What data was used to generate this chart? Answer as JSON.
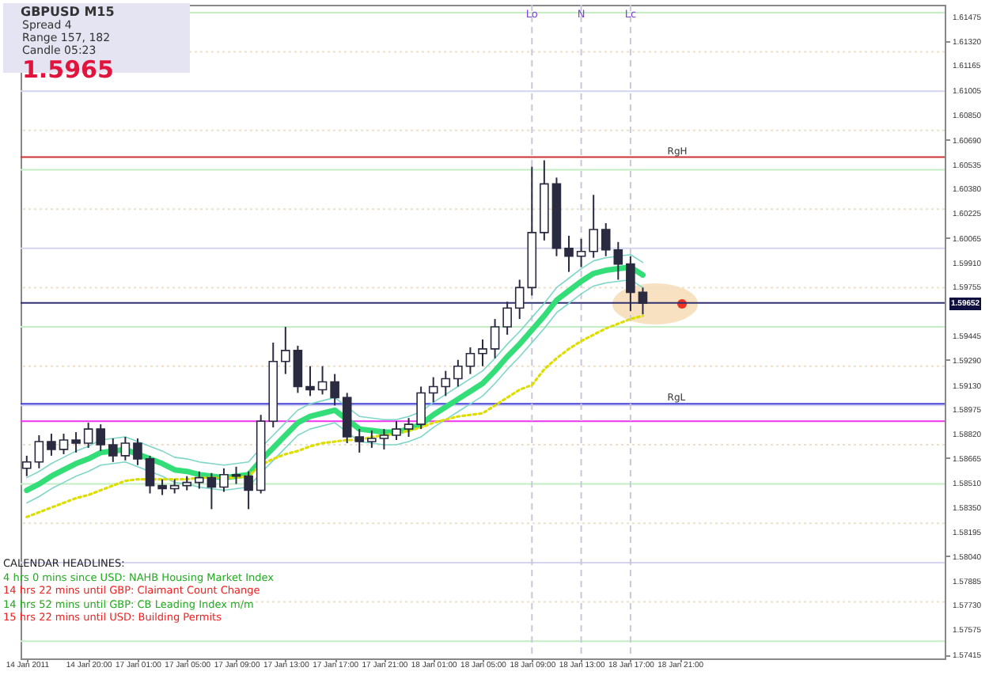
{
  "chart_data": {
    "type": "candlestick",
    "title": "GBPUSD M15",
    "categories": [
      "14 Jan 2011",
      null,
      null,
      null,
      null,
      "14 Jan 20:00",
      null,
      null,
      null,
      "17 Jan 01:00",
      null,
      null,
      null,
      "17 Jan 05:00",
      null,
      null,
      null,
      "17 Jan 09:00",
      null,
      null,
      null,
      "17 Jan 13:00",
      null,
      null,
      null,
      "17 Jan 17:00",
      null,
      null,
      null,
      "17 Jan 21:00",
      null,
      null,
      null,
      "18 Jan 01:00",
      null,
      null,
      null,
      "18 Jan 05:00",
      null,
      null,
      null,
      "18 Jan 09:00",
      null,
      null,
      null,
      "18 Jan 13:00",
      null,
      null,
      null,
      "18 Jan 17:00",
      null,
      null,
      null,
      "18 Jan 21:00",
      null,
      null,
      null,
      null,
      null,
      null,
      null,
      null,
      null,
      null,
      null,
      null,
      null,
      null,
      null,
      null,
      null,
      null,
      null,
      null,
      null
    ],
    "color": "#2a2a40",
    "ohlc": [
      [
        1.586,
        1.5868,
        1.5855,
        1.5864
      ],
      [
        1.5864,
        1.5881,
        1.586,
        1.5877
      ],
      [
        1.5877,
        1.5882,
        1.5868,
        1.5872
      ],
      [
        1.5872,
        1.5882,
        1.5869,
        1.5878
      ],
      [
        1.5878,
        1.5883,
        1.587,
        1.5876
      ],
      [
        1.5876,
        1.5889,
        1.5873,
        1.5885
      ],
      [
        1.5885,
        1.5888,
        1.5871,
        1.5875
      ],
      [
        1.5875,
        1.5879,
        1.5864,
        1.5868
      ],
      [
        1.5868,
        1.588,
        1.5865,
        1.5876
      ],
      [
        1.5876,
        1.5879,
        1.5862,
        1.5866
      ],
      [
        1.5866,
        1.5868,
        1.5844,
        1.5849
      ],
      [
        1.5849,
        1.5853,
        1.5843,
        1.5847
      ],
      [
        1.5847,
        1.5853,
        1.5844,
        1.5849
      ],
      [
        1.5849,
        1.5855,
        1.5846,
        1.5851
      ],
      [
        1.5851,
        1.5858,
        1.5847,
        1.5854
      ],
      [
        1.5854,
        1.5857,
        1.5834,
        1.5848
      ],
      [
        1.5848,
        1.586,
        1.5845,
        1.5856
      ],
      [
        1.5856,
        1.5861,
        1.585,
        1.5855
      ],
      [
        1.5855,
        1.5858,
        1.5834,
        1.5846
      ],
      [
        1.5846,
        1.5894,
        1.5844,
        1.589
      ],
      [
        1.589,
        1.594,
        1.5886,
        1.5928
      ],
      [
        1.5928,
        1.595,
        1.592,
        1.5935
      ],
      [
        1.5935,
        1.5938,
        1.5908,
        1.5912
      ],
      [
        1.5912,
        1.5925,
        1.5906,
        1.591
      ],
      [
        1.591,
        1.5925,
        1.5907,
        1.5915
      ],
      [
        1.5915,
        1.592,
        1.59,
        1.5905
      ],
      [
        1.5905,
        1.5908,
        1.5876,
        1.588
      ],
      [
        1.588,
        1.5885,
        1.587,
        1.5877
      ],
      [
        1.5877,
        1.5884,
        1.5873,
        1.5879
      ],
      [
        1.5879,
        1.5885,
        1.5872,
        1.5881
      ],
      [
        1.5881,
        1.589,
        1.5878,
        1.5885
      ],
      [
        1.5885,
        1.5892,
        1.588,
        1.5888
      ],
      [
        1.5888,
        1.5912,
        1.5885,
        1.5908
      ],
      [
        1.5908,
        1.5918,
        1.5902,
        1.5912
      ],
      [
        1.5912,
        1.5922,
        1.5906,
        1.5917
      ],
      [
        1.5917,
        1.5929,
        1.5912,
        1.5925
      ],
      [
        1.5925,
        1.5937,
        1.592,
        1.5933
      ],
      [
        1.5933,
        1.5942,
        1.5925,
        1.5936
      ],
      [
        1.5936,
        1.5955,
        1.593,
        1.595
      ],
      [
        1.595,
        1.5966,
        1.5945,
        1.5962
      ],
      [
        1.5962,
        1.598,
        1.5955,
        1.5975
      ],
      [
        1.5975,
        1.6052,
        1.597,
        1.601
      ],
      [
        1.601,
        1.6056,
        1.6005,
        1.6041
      ],
      [
        1.6041,
        1.6045,
        1.5995,
        1.6
      ],
      [
        1.6,
        1.6008,
        1.5985,
        1.5995
      ],
      [
        1.5995,
        1.6006,
        1.5988,
        1.5998
      ],
      [
        1.5998,
        1.6034,
        1.5994,
        1.6012
      ],
      [
        1.6012,
        1.6016,
        1.5995,
        1.5999
      ],
      [
        1.5999,
        1.6004,
        1.598,
        1.599
      ],
      [
        1.599,
        1.5995,
        1.596,
        1.5972
      ],
      [
        1.5972,
        1.5975,
        1.5958,
        1.5965
      ],
      null,
      null,
      null,
      null,
      null,
      null,
      null,
      null,
      null,
      null,
      null,
      null,
      null,
      null,
      null,
      null,
      null,
      null,
      null,
      null,
      null,
      null,
      null,
      null
    ],
    "series": [
      {
        "type": "line",
        "color": "#33dd77",
        "values": [
          1.5846,
          1.585,
          1.5855,
          1.5859,
          1.5863,
          1.5866,
          1.587,
          1.5871,
          1.5872,
          1.5869,
          1.5866,
          1.5863,
          1.5859,
          1.5858,
          1.5856,
          1.5855,
          1.5854,
          1.5855,
          1.5856,
          1.5865,
          1.5873,
          1.5881,
          1.5889,
          1.5893,
          1.5895,
          1.5897,
          1.5891,
          1.5885,
          1.5884,
          1.5883,
          1.5883,
          1.5885,
          1.5888,
          1.5894,
          1.5899,
          1.5904,
          1.5909,
          1.5914,
          1.5922,
          1.5931,
          1.5939,
          1.5948,
          1.5957,
          1.5967,
          1.5973,
          1.5979,
          1.5984,
          1.5986,
          1.5987,
          1.5988,
          1.5983,
          null,
          null,
          null,
          null,
          null,
          null,
          null,
          null,
          null,
          null,
          null,
          null,
          null,
          null,
          null,
          null,
          null,
          null,
          null,
          null,
          null,
          null,
          null,
          null
        ]
      },
      {
        "type": "line",
        "color": "#7fd6c8",
        "values": [
          1.5838,
          1.5842,
          1.5847,
          1.5851,
          1.5855,
          1.5858,
          1.5862,
          1.5863,
          1.5864,
          1.5861,
          1.5858,
          1.5855,
          1.5851,
          1.585,
          1.5848,
          1.5847,
          1.5846,
          1.5847,
          1.5848,
          1.5857,
          1.5865,
          1.5873,
          1.5881,
          1.5885,
          1.5887,
          1.5889,
          1.5883,
          1.5877,
          1.5876,
          1.5875,
          1.5875,
          1.5877,
          1.588,
          1.5886,
          1.5891,
          1.5896,
          1.5901,
          1.5906,
          1.5914,
          1.5923,
          1.5931,
          1.594,
          1.5949,
          1.5959,
          1.5965,
          1.5971,
          1.5976,
          1.5978,
          1.5979,
          1.598,
          1.5975,
          null,
          null,
          null,
          null,
          null,
          null,
          null,
          null,
          null,
          null,
          null,
          null,
          null,
          null,
          null,
          null,
          null,
          null,
          null,
          null,
          null,
          null,
          null,
          null
        ]
      },
      {
        "type": "line",
        "color": "#7fd6c8",
        "values": [
          1.5854,
          1.5858,
          1.5863,
          1.5867,
          1.5871,
          1.5874,
          1.5878,
          1.5879,
          1.588,
          1.5877,
          1.5874,
          1.5871,
          1.5867,
          1.5866,
          1.5864,
          1.5863,
          1.5862,
          1.5863,
          1.5864,
          1.5873,
          1.5881,
          1.5889,
          1.5897,
          1.5901,
          1.5903,
          1.5905,
          1.5899,
          1.5893,
          1.5892,
          1.5891,
          1.5891,
          1.5893,
          1.5896,
          1.5902,
          1.5907,
          1.5912,
          1.5917,
          1.5922,
          1.593,
          1.5939,
          1.5947,
          1.5956,
          1.5965,
          1.5975,
          1.5981,
          1.5987,
          1.5992,
          1.5994,
          1.5995,
          1.5996,
          1.5991,
          null,
          null,
          null,
          null,
          null,
          null,
          null,
          null,
          null,
          null,
          null,
          null,
          null,
          null,
          null,
          null,
          null,
          null,
          null,
          null,
          null,
          null,
          null,
          null
        ]
      },
      {
        "type": "line",
        "color": "#dddd00",
        "line_style": "dotted",
        "values": [
          1.5829,
          1.5832,
          1.5835,
          1.5838,
          1.5841,
          1.5843,
          1.5846,
          1.5849,
          1.5852,
          1.5853,
          1.5853,
          1.5853,
          1.5853,
          1.5853,
          1.5854,
          1.5854,
          1.5854,
          1.5854,
          1.5855,
          1.5862,
          1.5866,
          1.5869,
          1.5871,
          1.5874,
          1.5876,
          1.5877,
          1.5878,
          1.5878,
          1.588,
          1.5881,
          1.5882,
          1.5884,
          1.5886,
          1.5889,
          1.5891,
          1.5893,
          1.5894,
          1.5895,
          1.59,
          1.5905,
          1.591,
          1.5913,
          1.5923,
          1.593,
          1.5936,
          1.5941,
          1.5945,
          1.5949,
          1.5952,
          1.5955,
          1.5957,
          null,
          null,
          null,
          null,
          null,
          null,
          null,
          null,
          null,
          null,
          null,
          null,
          null,
          null,
          null,
          null,
          null,
          null,
          null,
          null,
          null,
          null,
          null,
          null
        ]
      }
    ],
    "ylim": [
      1.5739,
      1.6155
    ],
    "yticks": [
      1.61475,
      {
        "value": 1.6132,
        "label": "1.61320"
      },
      1.61165,
      1.61005,
      {
        "value": 1.6085,
        "label": "1.60850"
      },
      {
        "value": 1.6069,
        "label": "1.60690"
      },
      1.60535,
      {
        "value": 1.6038,
        "label": "1.60380"
      },
      1.60225,
      1.60065,
      {
        "value": 1.5991,
        "label": "1.59910"
      },
      1.59755,
      1.59445,
      {
        "value": 1.5929,
        "label": "1.59290"
      },
      {
        "value": 1.5913,
        "label": "1.59130"
      },
      1.58975,
      {
        "value": 1.5882,
        "label": "1.58820"
      },
      1.58665,
      {
        "value": 1.5851,
        "label": "1.58510"
      },
      {
        "value": 1.5835,
        "label": "1.58350"
      },
      1.58195,
      {
        "value": 1.5804,
        "label": "1.58040"
      },
      1.57885,
      {
        "value": 1.5773,
        "label": "1.57730"
      },
      1.57575,
      1.57415
    ],
    "ref_lines": [
      {
        "axis": "y",
        "value": 1.615,
        "color": "#c4eec4"
      },
      {
        "axis": "y",
        "value": 1.6125,
        "color": "#eedfc8",
        "line_style": "dotted"
      },
      {
        "axis": "y",
        "value": 1.61,
        "color": "#d4d4f0"
      },
      {
        "axis": "y",
        "value": 1.6075,
        "color": "#eedfc8",
        "line_style": "dotted"
      },
      {
        "axis": "y",
        "value": 1.605,
        "color": "#c4eec4"
      },
      {
        "axis": "y",
        "value": 1.6025,
        "color": "#eedfc8",
        "line_style": "dotted"
      },
      {
        "axis": "y",
        "value": 1.6,
        "color": "#d4d4f0"
      },
      {
        "axis": "y",
        "value": 1.5975,
        "color": "#eedfc8",
        "line_style": "dotted"
      },
      {
        "axis": "y",
        "value": 1.595,
        "color": "#c4eec4"
      },
      {
        "axis": "y",
        "value": 1.5925,
        "color": "#eedfc8",
        "line_style": "dotted"
      },
      {
        "axis": "y",
        "value": 1.59,
        "color": "#d4d4f0"
      },
      {
        "axis": "y",
        "value": 1.5875,
        "color": "#eedfc8",
        "line_style": "dotted"
      },
      {
        "axis": "y",
        "value": 1.585,
        "color": "#c4eec4"
      },
      {
        "axis": "y",
        "value": 1.5825,
        "color": "#eedfc8",
        "line_style": "dotted"
      },
      {
        "axis": "y",
        "value": 1.58,
        "color": "#d4d4f0"
      },
      {
        "axis": "y",
        "value": 1.5775,
        "color": "#eedfc8",
        "line_style": "dotted"
      },
      {
        "axis": "y",
        "value": 1.575,
        "color": "#c4eec4"
      },
      {
        "axis": "y",
        "value": 1.6058,
        "label": "RgH",
        "color": "#cc3333"
      },
      {
        "axis": "y",
        "value": 1.5901,
        "label": "RgL",
        "color": "#4444dd"
      },
      {
        "axis": "y",
        "value": 1.589,
        "color": "#ee33ee"
      },
      {
        "axis": "y",
        "value": 1.59652,
        "color": "#303070"
      },
      {
        "axis": "x",
        "value": "18 Jan 09:00",
        "label": "Lo",
        "color": "#c8c8d8",
        "line_style": "dashed"
      },
      {
        "axis": "x",
        "value": "18 Jan 13:00",
        "label": "N",
        "color": "#c8c8d8",
        "line_style": "dashed"
      },
      {
        "axis": "x",
        "value": "18 Jan 17:00",
        "label": "Lc",
        "color": "#c8c8d8",
        "line_style": "dashed"
      }
    ],
    "annotations": [
      "Spread  4",
      "Range  157, 182",
      "Candle  05:23",
      "1.5965",
      "CALENDAR HEADLINES:",
      "4 hrs 0 mins since USD: NAHB Housing Market Index",
      "14 hrs 22 mins until GBP: Claimant Count Change",
      "14 hrs 52 mins until GBP: CB Leading Index m/m",
      "15 hrs 22 mins until USD: Building Permits",
      "1.59652"
    ]
  }
}
